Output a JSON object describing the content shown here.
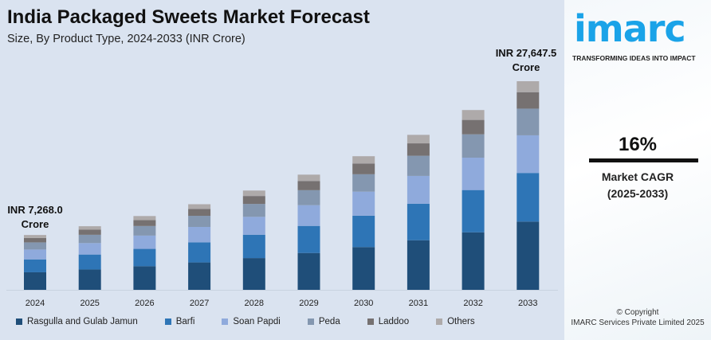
{
  "header": {
    "title": "India Packaged Sweets Market Forecast",
    "subtitle": "Size, By Product Type, 2024-2033 (INR Crore)"
  },
  "annotations": {
    "start_value": "INR 7,268.0",
    "start_unit": "Crore",
    "end_value": "INR 27,647.5",
    "end_unit": "Crore"
  },
  "chart_data": {
    "type": "bar",
    "stacked": true,
    "title": "India Packaged Sweets Market Forecast",
    "subtitle": "Size, By Product Type, 2024-2033 (INR Crore)",
    "categories": [
      "2024",
      "2025",
      "2026",
      "2027",
      "2028",
      "2029",
      "2030",
      "2031",
      "2032",
      "2033"
    ],
    "ylim": [
      0,
      27647.5
    ],
    "grid": false,
    "legend_position": "bottom",
    "series": [
      {
        "name": "Rasgulla and Gulab Jamun",
        "color": "#1f4e79",
        "values": [
          2326,
          2698,
          3130,
          3630,
          4211,
          4885,
          5667,
          6573,
          7625,
          9044
        ]
      },
      {
        "name": "Barfi",
        "color": "#2e75b6",
        "values": [
          1708,
          1981,
          2298,
          2666,
          3093,
          3588,
          4161,
          4827,
          5600,
          6445
        ]
      },
      {
        "name": "Soan Papdi",
        "color": "#8faadc",
        "values": [
          1308,
          1518,
          1760,
          2042,
          2369,
          2748,
          3187,
          3698,
          4289,
          4990
        ]
      },
      {
        "name": "Peda",
        "color": "#8497b0",
        "values": [
          945,
          1096,
          1271,
          1475,
          1711,
          1985,
          2302,
          2670,
          3098,
          3534
        ]
      },
      {
        "name": "Laddoo",
        "color": "#767171",
        "values": [
          581,
          674,
          782,
          908,
          1053,
          1221,
          1417,
          1643,
          1906,
          2183
        ]
      },
      {
        "name": "Others",
        "color": "#aeaaaa",
        "values": [
          400,
          464,
          539,
          624,
          723,
          839,
          974,
          1131,
          1310,
          1451.5
        ]
      }
    ]
  },
  "side": {
    "logo": "imarc",
    "tagline": "TRANSFORMING IDEAS INTO IMPACT",
    "cagr_value": "16%",
    "cagr_label": "Market CAGR",
    "cagr_period": "(2025-2033)",
    "copyright": "© Copyright",
    "company": "IMARC Services Private Limited 2025"
  }
}
